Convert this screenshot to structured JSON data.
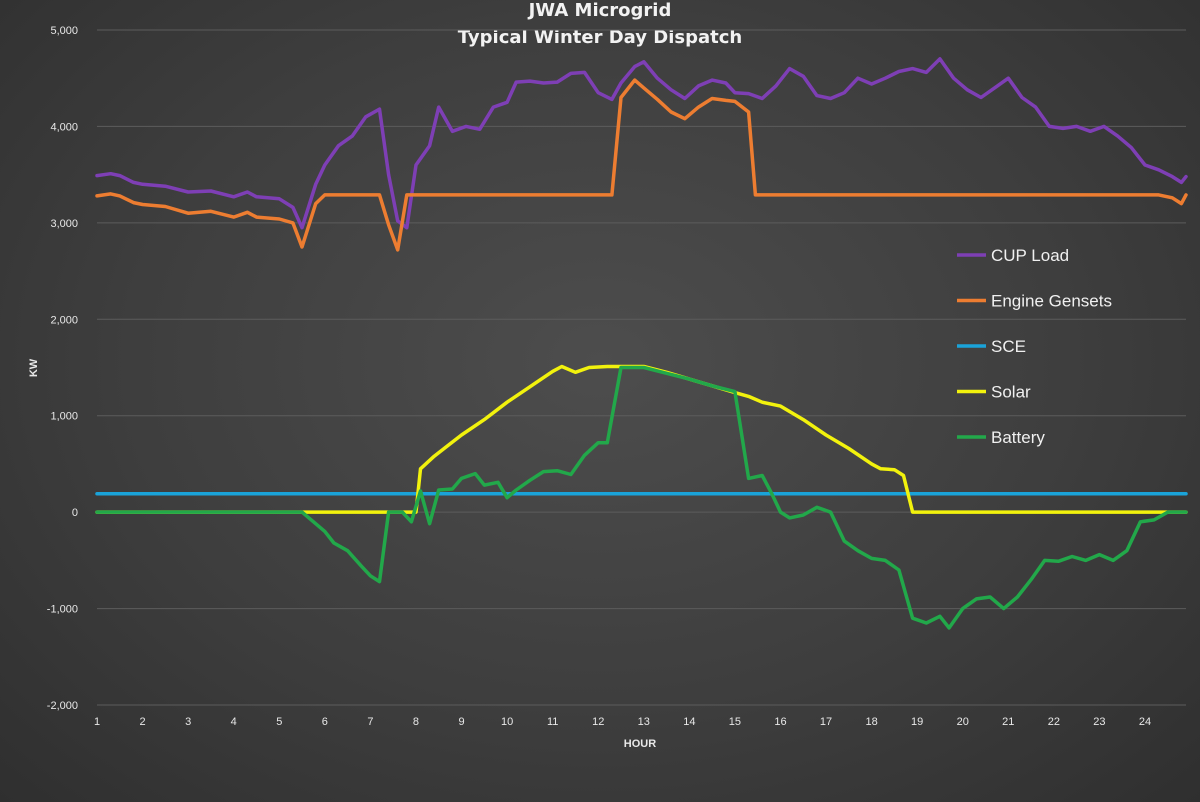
{
  "chart_data": {
    "type": "line",
    "title_lines": [
      "JWA Microgrid",
      "Typical Winter Day Dispatch"
    ],
    "xlabel": "HOUR",
    "ylabel": "KW",
    "xlim": [
      1,
      24.9
    ],
    "ylim": [
      -2000,
      5000
    ],
    "x_ticks": [
      1,
      2,
      3,
      4,
      5,
      6,
      7,
      8,
      9,
      10,
      11,
      12,
      13,
      14,
      15,
      16,
      17,
      18,
      19,
      20,
      21,
      22,
      23,
      24
    ],
    "y_ticks": [
      -2000,
      -1000,
      0,
      1000,
      2000,
      3000,
      4000,
      5000
    ],
    "y_tick_labels": [
      "-2,000",
      "-1,000",
      "0",
      "1,000",
      "2,000",
      "3,000",
      "4,000",
      "5,000"
    ],
    "grid": true,
    "legend_position": "right",
    "series": [
      {
        "name": "CUP Load",
        "color": "#7e3fb5",
        "points": [
          [
            1,
            3490
          ],
          [
            1.3,
            3510
          ],
          [
            1.5,
            3490
          ],
          [
            1.8,
            3420
          ],
          [
            2.0,
            3400
          ],
          [
            2.5,
            3380
          ],
          [
            3.0,
            3320
          ],
          [
            3.5,
            3330
          ],
          [
            4.0,
            3270
          ],
          [
            4.3,
            3320
          ],
          [
            4.5,
            3270
          ],
          [
            5.0,
            3250
          ],
          [
            5.3,
            3160
          ],
          [
            5.5,
            2950
          ],
          [
            5.8,
            3400
          ],
          [
            6.0,
            3600
          ],
          [
            6.3,
            3800
          ],
          [
            6.6,
            3900
          ],
          [
            6.9,
            4100
          ],
          [
            7.2,
            4180
          ],
          [
            7.4,
            3500
          ],
          [
            7.6,
            3020
          ],
          [
            7.8,
            2950
          ],
          [
            8.0,
            3600
          ],
          [
            8.3,
            3800
          ],
          [
            8.5,
            4200
          ],
          [
            8.8,
            3950
          ],
          [
            9.1,
            4000
          ],
          [
            9.4,
            3970
          ],
          [
            9.7,
            4200
          ],
          [
            10.0,
            4250
          ],
          [
            10.2,
            4460
          ],
          [
            10.5,
            4470
          ],
          [
            10.8,
            4450
          ],
          [
            11.1,
            4460
          ],
          [
            11.4,
            4550
          ],
          [
            11.7,
            4560
          ],
          [
            12.0,
            4350
          ],
          [
            12.3,
            4280
          ],
          [
            12.5,
            4450
          ],
          [
            12.8,
            4620
          ],
          [
            13.0,
            4670
          ],
          [
            13.3,
            4500
          ],
          [
            13.6,
            4380
          ],
          [
            13.9,
            4290
          ],
          [
            14.2,
            4420
          ],
          [
            14.5,
            4480
          ],
          [
            14.8,
            4450
          ],
          [
            15.0,
            4350
          ],
          [
            15.3,
            4340
          ],
          [
            15.6,
            4290
          ],
          [
            15.9,
            4420
          ],
          [
            16.2,
            4600
          ],
          [
            16.5,
            4520
          ],
          [
            16.8,
            4320
          ],
          [
            17.1,
            4290
          ],
          [
            17.4,
            4350
          ],
          [
            17.7,
            4500
          ],
          [
            18.0,
            4440
          ],
          [
            18.3,
            4500
          ],
          [
            18.6,
            4570
          ],
          [
            18.9,
            4600
          ],
          [
            19.2,
            4560
          ],
          [
            19.5,
            4700
          ],
          [
            19.8,
            4500
          ],
          [
            20.1,
            4380
          ],
          [
            20.4,
            4300
          ],
          [
            20.7,
            4400
          ],
          [
            21.0,
            4500
          ],
          [
            21.3,
            4300
          ],
          [
            21.6,
            4200
          ],
          [
            21.9,
            4000
          ],
          [
            22.2,
            3980
          ],
          [
            22.5,
            4000
          ],
          [
            22.8,
            3950
          ],
          [
            23.1,
            4000
          ],
          [
            23.4,
            3900
          ],
          [
            23.7,
            3780
          ],
          [
            24.0,
            3600
          ],
          [
            24.3,
            3550
          ],
          [
            24.6,
            3480
          ],
          [
            24.8,
            3420
          ],
          [
            24.9,
            3480
          ]
        ]
      },
      {
        "name": "Engine Gensets",
        "color": "#ed7d31",
        "points": [
          [
            1,
            3280
          ],
          [
            1.3,
            3300
          ],
          [
            1.5,
            3280
          ],
          [
            1.8,
            3210
          ],
          [
            2.0,
            3190
          ],
          [
            2.5,
            3170
          ],
          [
            3.0,
            3100
          ],
          [
            3.5,
            3120
          ],
          [
            4.0,
            3060
          ],
          [
            4.3,
            3110
          ],
          [
            4.5,
            3060
          ],
          [
            5.0,
            3040
          ],
          [
            5.3,
            3000
          ],
          [
            5.5,
            2750
          ],
          [
            5.8,
            3200
          ],
          [
            6.0,
            3290
          ],
          [
            7.2,
            3290
          ],
          [
            7.4,
            2980
          ],
          [
            7.6,
            2720
          ],
          [
            7.8,
            3290
          ],
          [
            12.3,
            3290
          ],
          [
            12.5,
            4300
          ],
          [
            12.8,
            4480
          ],
          [
            13.0,
            4400
          ],
          [
            13.3,
            4280
          ],
          [
            13.6,
            4150
          ],
          [
            13.9,
            4080
          ],
          [
            14.2,
            4200
          ],
          [
            14.5,
            4290
          ],
          [
            14.8,
            4270
          ],
          [
            15.0,
            4260
          ],
          [
            15.3,
            4150
          ],
          [
            15.45,
            3290
          ],
          [
            24.3,
            3290
          ],
          [
            24.6,
            3260
          ],
          [
            24.8,
            3200
          ],
          [
            24.9,
            3290
          ]
        ]
      },
      {
        "name": "SCE",
        "color": "#1aa3d9",
        "points": [
          [
            1,
            190
          ],
          [
            24.9,
            190
          ]
        ]
      },
      {
        "name": "Solar",
        "color": "#f2f20d",
        "points": [
          [
            1,
            0
          ],
          [
            7.6,
            0
          ],
          [
            7.8,
            0
          ],
          [
            8.0,
            0
          ],
          [
            8.1,
            450
          ],
          [
            8.4,
            580
          ],
          [
            8.7,
            690
          ],
          [
            9.0,
            800
          ],
          [
            9.5,
            960
          ],
          [
            10.0,
            1140
          ],
          [
            10.5,
            1300
          ],
          [
            11.0,
            1460
          ],
          [
            11.2,
            1510
          ],
          [
            11.5,
            1450
          ],
          [
            11.8,
            1500
          ],
          [
            12.2,
            1510
          ],
          [
            12.5,
            1510
          ],
          [
            13.0,
            1510
          ],
          [
            13.5,
            1450
          ],
          [
            14.0,
            1380
          ],
          [
            14.5,
            1310
          ],
          [
            15.0,
            1240
          ],
          [
            15.3,
            1200
          ],
          [
            15.6,
            1140
          ],
          [
            16.0,
            1100
          ],
          [
            16.5,
            960
          ],
          [
            17.0,
            800
          ],
          [
            17.5,
            660
          ],
          [
            18.0,
            500
          ],
          [
            18.2,
            450
          ],
          [
            18.5,
            440
          ],
          [
            18.7,
            380
          ],
          [
            18.9,
            0
          ],
          [
            24.9,
            0
          ]
        ]
      },
      {
        "name": "Battery",
        "color": "#22a84a",
        "points": [
          [
            1,
            0
          ],
          [
            5.5,
            0
          ],
          [
            6.0,
            -200
          ],
          [
            6.2,
            -320
          ],
          [
            6.5,
            -400
          ],
          [
            6.8,
            -560
          ],
          [
            7.0,
            -660
          ],
          [
            7.2,
            -720
          ],
          [
            7.4,
            0
          ],
          [
            7.7,
            0
          ],
          [
            7.9,
            -100
          ],
          [
            8.1,
            220
          ],
          [
            8.3,
            -120
          ],
          [
            8.5,
            230
          ],
          [
            8.8,
            240
          ],
          [
            9.0,
            350
          ],
          [
            9.3,
            400
          ],
          [
            9.5,
            280
          ],
          [
            9.8,
            310
          ],
          [
            10.0,
            150
          ],
          [
            10.2,
            230
          ],
          [
            10.5,
            330
          ],
          [
            10.8,
            420
          ],
          [
            11.1,
            430
          ],
          [
            11.4,
            390
          ],
          [
            11.7,
            590
          ],
          [
            12.0,
            720
          ],
          [
            12.2,
            720
          ],
          [
            12.5,
            1500
          ],
          [
            13.0,
            1500
          ],
          [
            13.5,
            1440
          ],
          [
            14.0,
            1380
          ],
          [
            14.5,
            1310
          ],
          [
            15.0,
            1250
          ],
          [
            15.3,
            350
          ],
          [
            15.6,
            380
          ],
          [
            15.8,
            200
          ],
          [
            16.0,
            0
          ],
          [
            16.2,
            -60
          ],
          [
            16.5,
            -30
          ],
          [
            16.8,
            50
          ],
          [
            17.1,
            0
          ],
          [
            17.4,
            -300
          ],
          [
            17.7,
            -400
          ],
          [
            18.0,
            -480
          ],
          [
            18.3,
            -500
          ],
          [
            18.6,
            -600
          ],
          [
            18.9,
            -1100
          ],
          [
            19.2,
            -1150
          ],
          [
            19.5,
            -1080
          ],
          [
            19.7,
            -1200
          ],
          [
            20.0,
            -1000
          ],
          [
            20.3,
            -900
          ],
          [
            20.6,
            -880
          ],
          [
            20.9,
            -1000
          ],
          [
            21.2,
            -880
          ],
          [
            21.5,
            -700
          ],
          [
            21.8,
            -500
          ],
          [
            22.1,
            -510
          ],
          [
            22.4,
            -460
          ],
          [
            22.7,
            -500
          ],
          [
            23.0,
            -440
          ],
          [
            23.3,
            -500
          ],
          [
            23.6,
            -400
          ],
          [
            23.9,
            -100
          ],
          [
            24.2,
            -80
          ],
          [
            24.5,
            0
          ],
          [
            24.9,
            0
          ]
        ]
      }
    ]
  }
}
